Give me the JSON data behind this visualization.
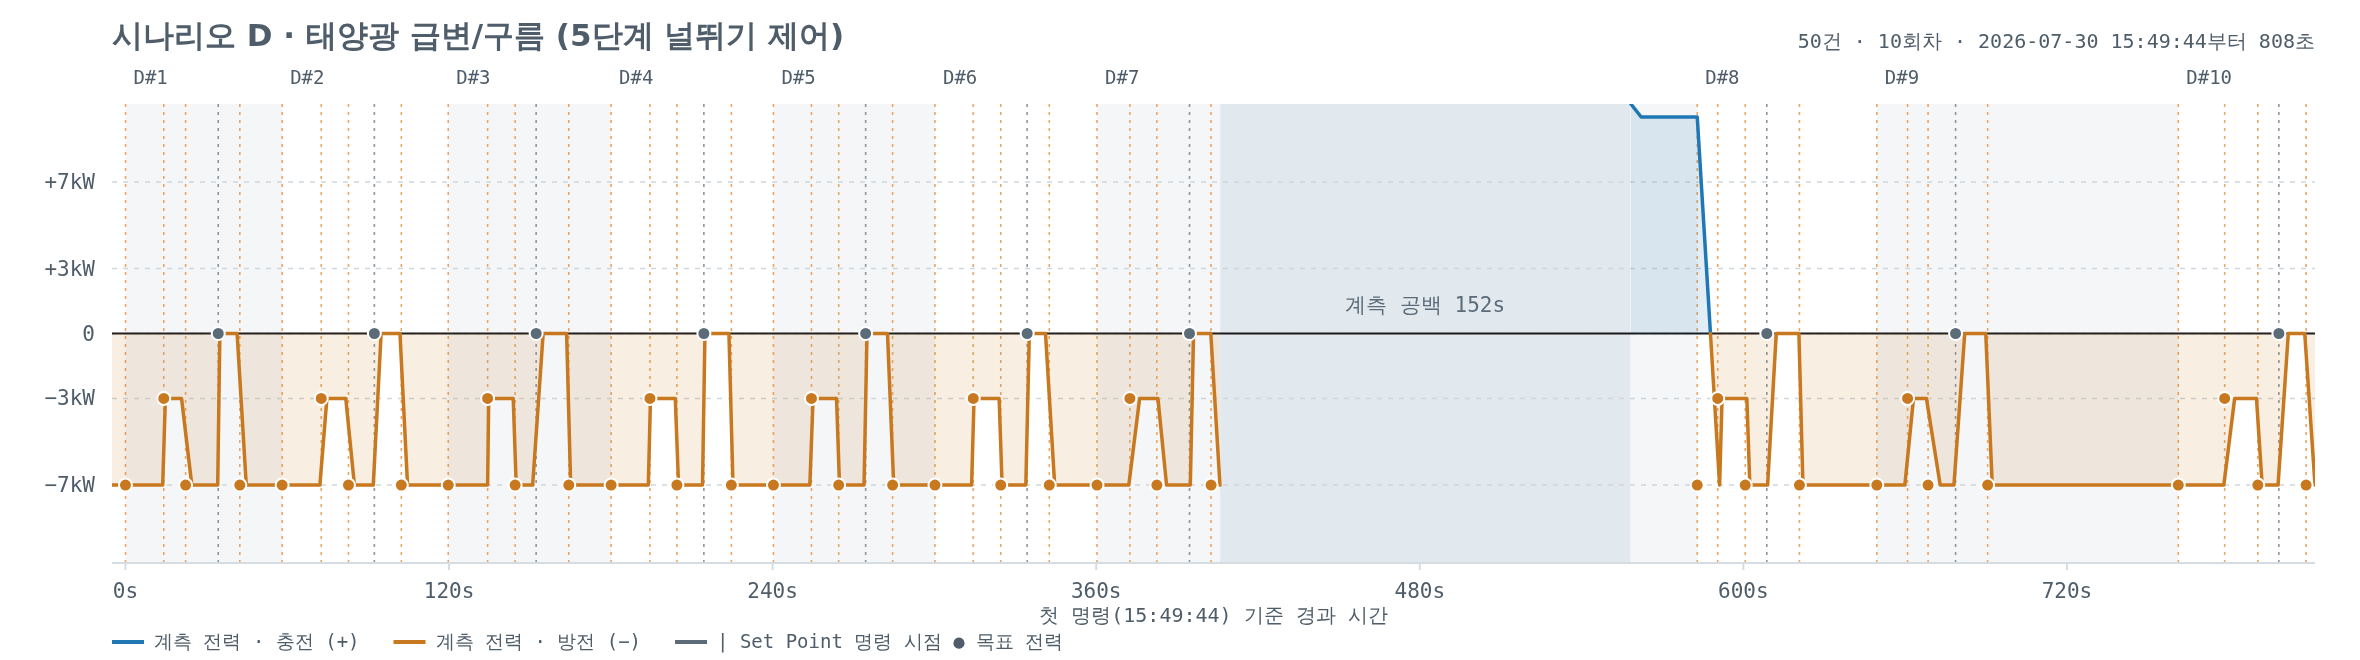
{
  "chart_data": {
    "type": "area",
    "title": "시나리오 D · 태양광 급변/구름 (5단계 널뛰기 제어)",
    "subtitle": "50건 · 10회차 · 2026-07-30 15:49:44부터 808초",
    "xlabel": "첫 명령(15:49:44) 기준 경과 시간",
    "xlim": [
      -5,
      812
    ],
    "ylim": [
      -10.6,
      10.6
    ],
    "xticks": [
      {
        "value": 0,
        "label": "0s"
      },
      {
        "value": 120,
        "label": "120s"
      },
      {
        "value": 240,
        "label": "240s"
      },
      {
        "value": 360,
        "label": "360s"
      },
      {
        "value": 480,
        "label": "480s"
      },
      {
        "value": 600,
        "label": "600s"
      },
      {
        "value": 720,
        "label": "720s"
      }
    ],
    "yticks": [
      {
        "value": -7,
        "label": "−7kW"
      },
      {
        "value": -3,
        "label": "−3kW"
      },
      0,
      {
        "value": 3,
        "label": "+3kW"
      },
      {
        "value": 7,
        "label": "+7kW"
      }
    ],
    "grid": "y",
    "legend": "bottom",
    "series": [
      {
        "name": "계측 전력 · 충전 (+)",
        "color": "#1f77b4",
        "x": [
          558.3,
          562.1,
          582.9,
          587.8
        ],
        "values": [
          10.6,
          10,
          10,
          0
        ]
      },
      {
        "name": "계측 전력 · 방전 (−)",
        "color": "#c8781e",
        "x": [
          -5,
          13.8,
          14.8,
          20.8,
          24.6,
          34.2,
          35.0,
          41.4,
          44.8,
          72.1,
          74.7,
          81.7,
          84.9,
          91.9,
          94.8,
          101.8,
          104.6,
          134.3,
          134.7,
          143.8,
          144.9,
          151.0,
          154.9,
          163.6,
          165.1,
          193.9,
          194.7,
          203.9,
          205.1,
          214.0,
          214.9,
          223.8,
          225.3,
          253.8,
          255.0,
          263.7,
          264.8,
          273.9,
          275.0,
          282.6,
          284.9,
          313.8,
          314.7,
          324.0,
          325.1,
          333.9,
          335.2,
          341.2,
          344.6,
          372.1,
          376.1,
          382.9,
          386.1,
          394.9,
          396.1,
          402.5,
          405.9
        ],
        "values": [
          -7,
          -7,
          -3,
          -3,
          -7,
          -7,
          0,
          0,
          -7,
          -7,
          -3,
          -3,
          -7,
          -7,
          0,
          0,
          -7,
          -7,
          -3,
          -3,
          -7,
          -7,
          0,
          0,
          -7,
          -7,
          -3,
          -3,
          -7,
          -7,
          0,
          0,
          -7,
          -7,
          -3,
          -3,
          -7,
          -7,
          0,
          0,
          -7,
          -7,
          -3,
          -3,
          -7,
          -7,
          0,
          0,
          -7,
          -7,
          -3,
          -3,
          -7,
          -7,
          0,
          0,
          -7
        ]
      },
      {
        "color": "#c8781e",
        "x": [
          587.8,
          591.2,
          592.1,
          601.3,
          602.4,
          609.0,
          612.2,
          620.6,
          622.1,
          659.9,
          663.1,
          667.9,
          673.0,
          678.1,
          682.1,
          689.9,
          692.3,
          778.2,
          782.2,
          790.3,
          792.4,
          798.3,
          802.1,
          808.2,
          812
        ],
        "values": [
          0,
          -7,
          -3,
          -3,
          -7,
          -7,
          0,
          0,
          -7,
          -7,
          -3,
          -3,
          -7,
          -7,
          0,
          0,
          -7,
          -7,
          -3,
          -3,
          -7,
          -7,
          0,
          0,
          -7
        ]
      },
      {
        "name": "| Set Point 명령 시점 ● 목표 전력",
        "type": "scatter",
        "marker": "circle",
        "color": "#5b6b78",
        "x": [
          0,
          14.2,
          22.3,
          34.4,
          42.4,
          58.1,
          72.6,
          82.7,
          92.3,
          102.3,
          119.7,
          134.3,
          144.5,
          152.3,
          164.4,
          180.1,
          194.5,
          204.5,
          214.5,
          224.7,
          240.3,
          254.4,
          264.5,
          274.5,
          284.5,
          300.2,
          314.4,
          324.6,
          334.4,
          342.6,
          360.3,
          372.5,
          382.5,
          394.6,
          402.6,
          582.9,
          590.5,
          600.7,
          608.7,
          620.8,
          649.5,
          660.9,
          668.5,
          678.7,
          690.6,
          761.3,
          778.5,
          790.8,
          798.6,
          808.7
        ],
        "values": [
          -7,
          -3,
          -7,
          0,
          -7,
          -7,
          -3,
          -7,
          0,
          -7,
          -7,
          -3,
          -7,
          0,
          -7,
          -7,
          -3,
          -7,
          0,
          -7,
          -7,
          -3,
          -7,
          0,
          -7,
          -7,
          -3,
          -7,
          0,
          -7,
          -7,
          -3,
          -7,
          0,
          -7,
          -7,
          -3,
          -7,
          0,
          -7,
          -7,
          -3,
          -7,
          0,
          -7,
          -7,
          -3,
          -7,
          0,
          -7
        ],
        "colors": [
          "#c8781e",
          "#c8781e",
          "#c8781e",
          "#5b6b78",
          "#c8781e",
          "#c8781e",
          "#c8781e",
          "#c8781e",
          "#5b6b78",
          "#c8781e",
          "#c8781e",
          "#c8781e",
          "#c8781e",
          "#5b6b78",
          "#c8781e",
          "#c8781e",
          "#c8781e",
          "#c8781e",
          "#5b6b78",
          "#c8781e",
          "#c8781e",
          "#c8781e",
          "#c8781e",
          "#5b6b78",
          "#c8781e",
          "#c8781e",
          "#c8781e",
          "#c8781e",
          "#5b6b78",
          "#c8781e",
          "#c8781e",
          "#c8781e",
          "#c8781e",
          "#5b6b78",
          "#c8781e",
          "#c8781e",
          "#c8781e",
          "#c8781e",
          "#5b6b78",
          "#c8781e",
          "#c8781e",
          "#c8781e",
          "#c8781e",
          "#5b6b78",
          "#c8781e",
          "#c8781e",
          "#c8781e",
          "#c8781e",
          "#5b6b78",
          "#c8781e"
        ]
      }
    ],
    "bands": [
      {
        "axis": "x",
        "from": 0,
        "to": 58.1,
        "color": "#f4f6f8"
      },
      {
        "axis": "x",
        "from": 119.7,
        "to": 180.1,
        "color": "#f4f6f8"
      },
      {
        "axis": "x",
        "from": 240.3,
        "to": 300.2,
        "color": "#f4f6f8"
      },
      {
        "axis": "x",
        "from": 360.3,
        "to": 582.9,
        "color": "#f4f6f8"
      },
      {
        "axis": "x",
        "from": 649.5,
        "to": 761.3,
        "color": "#f4f6f8"
      },
      {
        "axis": "x",
        "from": 406,
        "to": 558,
        "label": "계측 공백 152s",
        "color": "#e2e9ee"
      }
    ],
    "ref_lines": [
      {
        "axis": "y",
        "value": 0,
        "color": "#1a1a1a",
        "line_style": "solid"
      },
      {
        "axis": "x",
        "value": 0,
        "label": "D#1",
        "color": "#e8a66a",
        "line_style": "dotted"
      },
      {
        "axis": "x",
        "value": 14.2,
        "color": "#e8a66a",
        "line_style": "dotted"
      },
      {
        "axis": "x",
        "value": 22.3,
        "color": "#e8a66a",
        "line_style": "dotted"
      },
      {
        "axis": "x",
        "value": 34.4,
        "color": "#8d969e",
        "line_style": "dotted"
      },
      {
        "axis": "x",
        "value": 42.4,
        "color": "#e8a66a",
        "line_style": "dotted"
      },
      {
        "axis": "x",
        "value": 58.1,
        "label": "D#2",
        "color": "#e8a66a",
        "line_style": "dotted"
      },
      {
        "axis": "x",
        "value": 72.6,
        "color": "#e8a66a",
        "line_style": "dotted"
      },
      {
        "axis": "x",
        "value": 82.7,
        "color": "#e8a66a",
        "line_style": "dotted"
      },
      {
        "axis": "x",
        "value": 92.3,
        "color": "#8d969e",
        "line_style": "dotted"
      },
      {
        "axis": "x",
        "value": 102.3,
        "color": "#e8a66a",
        "line_style": "dotted"
      },
      {
        "axis": "x",
        "value": 119.7,
        "label": "D#3",
        "color": "#e8a66a",
        "line_style": "dotted"
      },
      {
        "axis": "x",
        "value": 134.3,
        "color": "#e8a66a",
        "line_style": "dotted"
      },
      {
        "axis": "x",
        "value": 144.5,
        "color": "#e8a66a",
        "line_style": "dotted"
      },
      {
        "axis": "x",
        "value": 152.3,
        "color": "#8d969e",
        "line_style": "dotted"
      },
      {
        "axis": "x",
        "value": 164.4,
        "color": "#e8a66a",
        "line_style": "dotted"
      },
      {
        "axis": "x",
        "value": 180.1,
        "label": "D#4",
        "color": "#e8a66a",
        "line_style": "dotted"
      },
      {
        "axis": "x",
        "value": 194.5,
        "color": "#e8a66a",
        "line_style": "dotted"
      },
      {
        "axis": "x",
        "value": 204.5,
        "color": "#e8a66a",
        "line_style": "dotted"
      },
      {
        "axis": "x",
        "value": 214.5,
        "color": "#8d969e",
        "line_style": "dotted"
      },
      {
        "axis": "x",
        "value": 224.7,
        "color": "#e8a66a",
        "line_style": "dotted"
      },
      {
        "axis": "x",
        "value": 240.3,
        "label": "D#5",
        "color": "#e8a66a",
        "line_style": "dotted"
      },
      {
        "axis": "x",
        "value": 254.4,
        "color": "#e8a66a",
        "line_style": "dotted"
      },
      {
        "axis": "x",
        "value": 264.5,
        "color": "#e8a66a",
        "line_style": "dotted"
      },
      {
        "axis": "x",
        "value": 274.5,
        "color": "#8d969e",
        "line_style": "dotted"
      },
      {
        "axis": "x",
        "value": 284.5,
        "color": "#e8a66a",
        "line_style": "dotted"
      },
      {
        "axis": "x",
        "value": 300.2,
        "label": "D#6",
        "color": "#e8a66a",
        "line_style": "dotted"
      },
      {
        "axis": "x",
        "value": 314.4,
        "color": "#e8a66a",
        "line_style": "dotted"
      },
      {
        "axis": "x",
        "value": 324.6,
        "color": "#e8a66a",
        "line_style": "dotted"
      },
      {
        "axis": "x",
        "value": 334.4,
        "color": "#8d969e",
        "line_style": "dotted"
      },
      {
        "axis": "x",
        "value": 342.6,
        "color": "#e8a66a",
        "line_style": "dotted"
      },
      {
        "axis": "x",
        "value": 360.3,
        "label": "D#7",
        "color": "#e8a66a",
        "line_style": "dotted"
      },
      {
        "axis": "x",
        "value": 372.5,
        "color": "#e8a66a",
        "line_style": "dotted"
      },
      {
        "axis": "x",
        "value": 382.5,
        "color": "#e8a66a",
        "line_style": "dotted"
      },
      {
        "axis": "x",
        "value": 394.6,
        "color": "#8d969e",
        "line_style": "dotted"
      },
      {
        "axis": "x",
        "value": 402.6,
        "color": "#e8a66a",
        "line_style": "dotted"
      },
      {
        "axis": "x",
        "value": 582.9,
        "label": "D#8",
        "color": "#e8a66a",
        "line_style": "dotted"
      },
      {
        "axis": "x",
        "value": 590.5,
        "color": "#e8a66a",
        "line_style": "dotted"
      },
      {
        "axis": "x",
        "value": 600.7,
        "color": "#e8a66a",
        "line_style": "dotted"
      },
      {
        "axis": "x",
        "value": 608.7,
        "color": "#8d969e",
        "line_style": "dotted"
      },
      {
        "axis": "x",
        "value": 620.8,
        "color": "#e8a66a",
        "line_style": "dotted"
      },
      {
        "axis": "x",
        "value": 649.5,
        "label": "D#9",
        "color": "#e8a66a",
        "line_style": "dotted"
      },
      {
        "axis": "x",
        "value": 660.9,
        "color": "#e8a66a",
        "line_style": "dotted"
      },
      {
        "axis": "x",
        "value": 668.5,
        "color": "#e8a66a",
        "line_style": "dotted"
      },
      {
        "axis": "x",
        "value": 678.7,
        "color": "#8d969e",
        "line_style": "dotted"
      },
      {
        "axis": "x",
        "value": 690.6,
        "color": "#e8a66a",
        "line_style": "dotted"
      },
      {
        "axis": "x",
        "value": 761.3,
        "label": "D#10",
        "color": "#e8a66a",
        "line_style": "dotted"
      },
      {
        "axis": "x",
        "value": 778.5,
        "color": "#e8a66a",
        "line_style": "dotted"
      },
      {
        "axis": "x",
        "value": 790.8,
        "color": "#e8a66a",
        "line_style": "dotted"
      },
      {
        "axis": "x",
        "value": 798.6,
        "color": "#8d969e",
        "line_style": "dotted"
      },
      {
        "axis": "x",
        "value": 808.7,
        "color": "#e8a66a",
        "line_style": "dotted"
      }
    ]
  }
}
